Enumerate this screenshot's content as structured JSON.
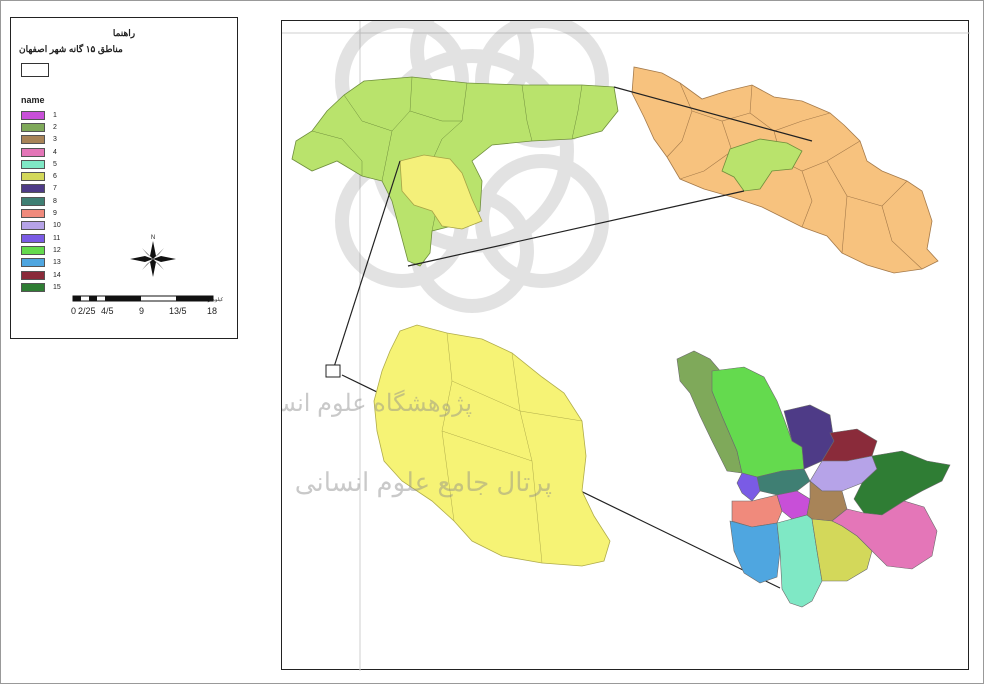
{
  "legend": {
    "heading": "راهنما",
    "layer_title": "مناطق ۱۵ گانه شهر اصفهان",
    "field_name": "name",
    "items": [
      {
        "label": "1",
        "color": "#c84fd8"
      },
      {
        "label": "2",
        "color": "#7fa95a"
      },
      {
        "label": "3",
        "color": "#a88458"
      },
      {
        "label": "4",
        "color": "#e476b8"
      },
      {
        "label": "5",
        "color": "#7fe8c5"
      },
      {
        "label": "6",
        "color": "#d3d85a"
      },
      {
        "label": "7",
        "color": "#4e3b87"
      },
      {
        "label": "8",
        "color": "#3f7f73"
      },
      {
        "label": "9",
        "color": "#f08a7c"
      },
      {
        "label": "10",
        "color": "#b6a3e8"
      },
      {
        "label": "11",
        "color": "#7a5be5"
      },
      {
        "label": "12",
        "color": "#64da4e"
      },
      {
        "label": "13",
        "color": "#4fa6e0"
      },
      {
        "label": "14",
        "color": "#8a2b3a"
      },
      {
        "label": "15",
        "color": "#2f7d34"
      }
    ]
  },
  "scale": {
    "unit": "کیلومتر",
    "labels": [
      "0",
      "2/25",
      "4/5",
      "9",
      "13/5",
      "18"
    ]
  },
  "north_arrow": {
    "icon": "compass-rose-icon",
    "label": "N"
  },
  "map": {
    "country_color": "#f7c27e",
    "province_color": "#b9e36c",
    "county_color": "#f4f07a",
    "city_region_color": "#f6f375",
    "watermark_text_1": "پژوهشگاه علوم انسانی و مطالعات فرهنگی",
    "watermark_text_2": "پرتال جامع علوم انسانی"
  }
}
